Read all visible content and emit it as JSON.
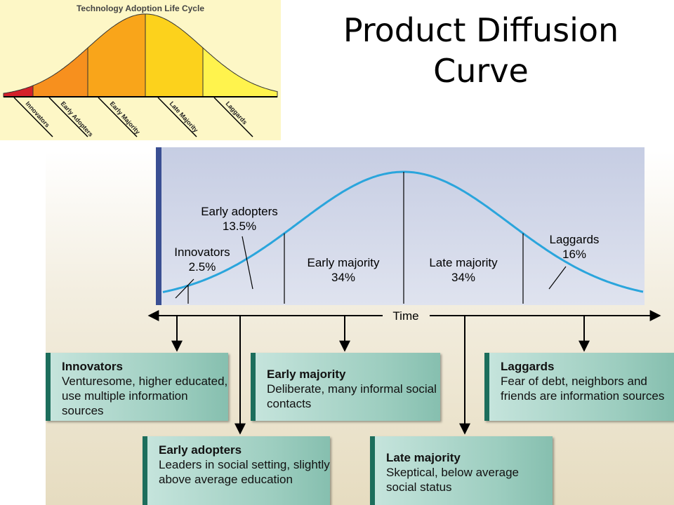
{
  "title": "Product Diffusion Curve",
  "inset": {
    "title": "Technology Adoption Life Cycle",
    "labels": [
      "Innovators",
      "Early Adopters",
      "Early Majority",
      "Late Majority",
      "Laggards"
    ]
  },
  "curve": {
    "segments": [
      {
        "name": "Innovators",
        "share": "2.5%"
      },
      {
        "name": "Early adopters",
        "share": "13.5%"
      },
      {
        "name": "Early majority",
        "share": "34%"
      },
      {
        "name": "Late majority",
        "share": "34%"
      },
      {
        "name": "Laggards",
        "share": "16%"
      }
    ],
    "axis_label": "Time"
  },
  "boxes": [
    {
      "title": "Innovators",
      "text": "Venturesome, higher educated, use multiple information sources"
    },
    {
      "title": "Early adopters",
      "text": "Leaders in social setting, slightly above average education"
    },
    {
      "title": "Early majority",
      "text": "Deliberate, many informal social contacts"
    },
    {
      "title": "Late majority",
      "text": "Skeptical, below average social status"
    },
    {
      "title": "Laggards",
      "text": "Fear of debt, neighbors and friends are information sources"
    }
  ]
}
